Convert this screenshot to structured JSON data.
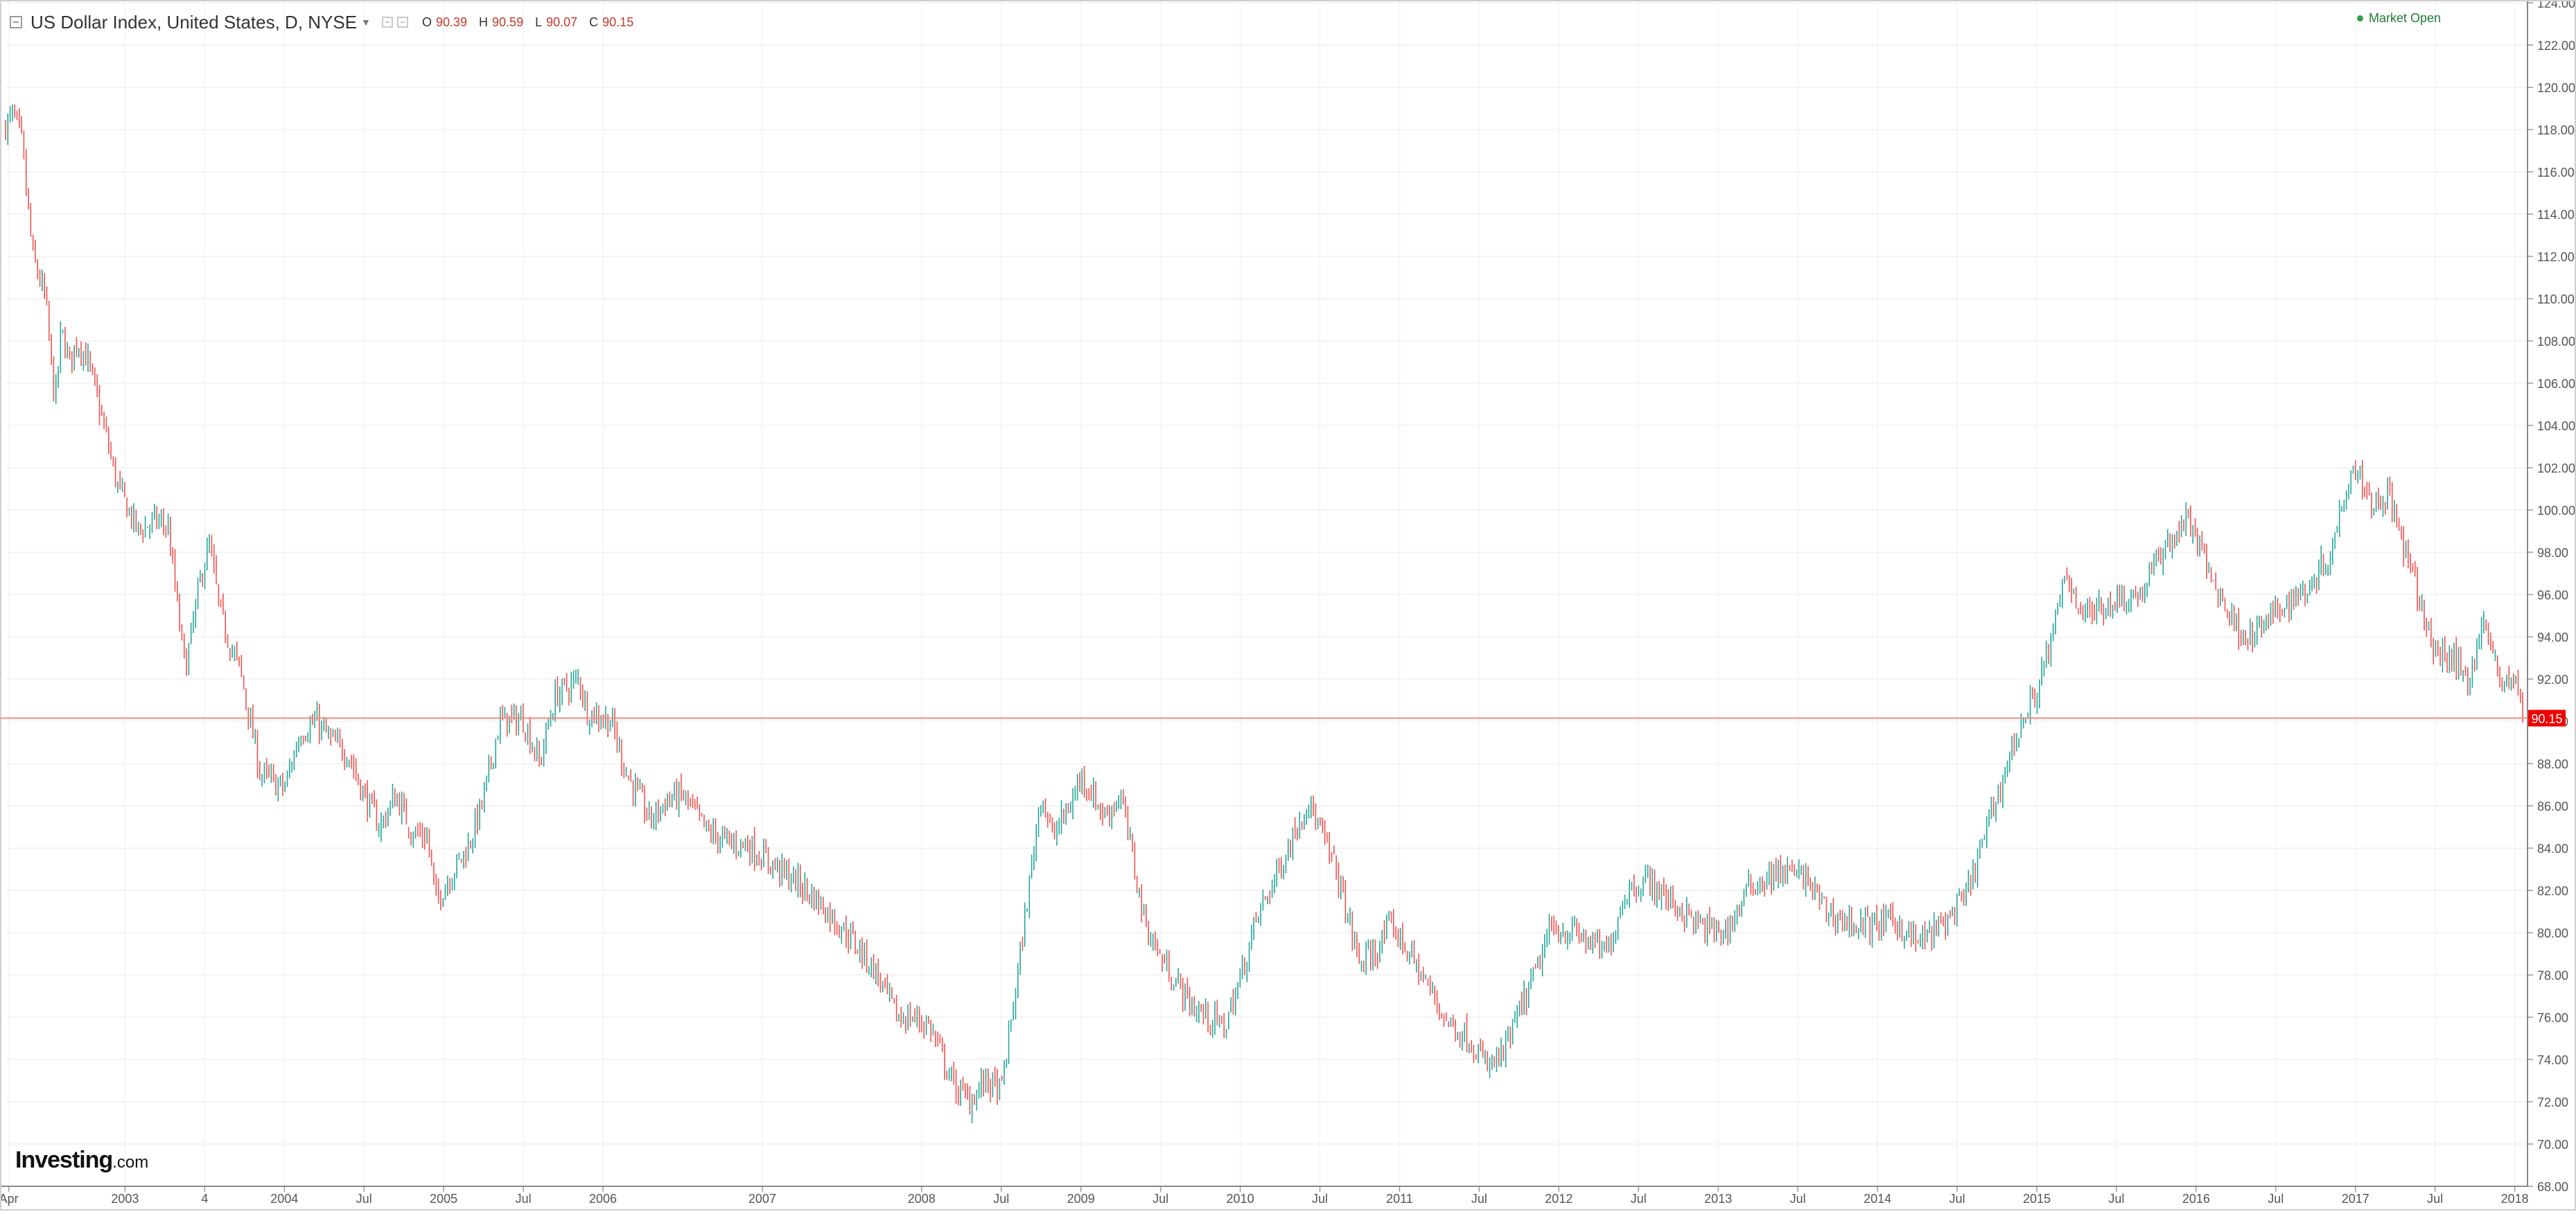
{
  "header": {
    "symbol_title": "US Dollar Index, United States, D, NYSE",
    "ohlc": {
      "open_label": "O",
      "open": "90.39",
      "high_label": "H",
      "high": "90.59",
      "low_label": "L",
      "low": "90.07",
      "close_label": "C",
      "close": "90.15"
    },
    "status": "Market Open"
  },
  "watermark": {
    "brand": "Investing",
    "domain": ".com"
  },
  "colors": {
    "up": "#26a69a",
    "down": "#ef5350",
    "price_line": "#f28b82",
    "last_price_tag": "#f00000",
    "background": "#ffffff"
  },
  "icons": [
    "collapse-icon",
    "chevron-down-icon",
    "settings-icon",
    "close-icon",
    "status-dot-icon"
  ],
  "chart_data": {
    "type": "line",
    "style": "candlestick",
    "title": "US Dollar Index, United States, D, NYSE",
    "xlabel": "",
    "ylabel": "",
    "ylim": [
      68,
      124
    ],
    "xlim": [
      2002.25,
      2018.08
    ],
    "grid": true,
    "last_price": 90.15,
    "last_price_label": "90.15",
    "y_ticks": [
      "68.00",
      "70.00",
      "72.00",
      "74.00",
      "76.00",
      "78.00",
      "80.00",
      "82.00",
      "84.00",
      "86.00",
      "88.00",
      "90.00",
      "92.00",
      "94.00",
      "96.00",
      "98.00",
      "100.00",
      "102.00",
      "104.00",
      "106.00",
      "108.00",
      "110.00",
      "112.00",
      "114.00",
      "116.00",
      "118.00",
      "120.00",
      "122.00",
      "124.00"
    ],
    "x_ticks": [
      {
        "label": "Apr",
        "t": 2002.27
      },
      {
        "label": "2003",
        "t": 2003.0
      },
      {
        "label": "4",
        "t": 2003.5
      },
      {
        "label": "2004",
        "t": 2004.0
      },
      {
        "label": "Jul",
        "t": 2004.5
      },
      {
        "label": "2005",
        "t": 2005.0
      },
      {
        "label": "Jul",
        "t": 2005.5
      },
      {
        "label": "2006",
        "t": 2006.0
      },
      {
        "label": "2007",
        "t": 2007.0
      },
      {
        "label": "2008",
        "t": 2008.0
      },
      {
        "label": "Jul",
        "t": 2008.5
      },
      {
        "label": "2009",
        "t": 2009.0
      },
      {
        "label": "Jul",
        "t": 2009.5
      },
      {
        "label": "2010",
        "t": 2010.0
      },
      {
        "label": "Jul",
        "t": 2010.5
      },
      {
        "label": "2011",
        "t": 2011.0
      },
      {
        "label": "Jul",
        "t": 2011.5
      },
      {
        "label": "2012",
        "t": 2012.0
      },
      {
        "label": "Jul",
        "t": 2012.5
      },
      {
        "label": "2013",
        "t": 2013.0
      },
      {
        "label": "Jul",
        "t": 2013.5
      },
      {
        "label": "2014",
        "t": 2014.0
      },
      {
        "label": "Jul",
        "t": 2014.5
      },
      {
        "label": "2015",
        "t": 2015.0
      },
      {
        "label": "Jul",
        "t": 2015.5
      },
      {
        "label": "2016",
        "t": 2016.0
      },
      {
        "label": "Jul",
        "t": 2016.5
      },
      {
        "label": "2017",
        "t": 2017.0
      },
      {
        "label": "Jul",
        "t": 2017.5
      },
      {
        "label": "2018",
        "t": 2018.0
      }
    ],
    "series": [
      {
        "x": [
          2002.25,
          2002.3,
          2002.35,
          2002.42,
          2002.5,
          2002.56,
          2002.6,
          2002.65,
          2002.7,
          2002.76,
          2002.85,
          2002.95,
          2003.08,
          2003.2,
          2003.27,
          2003.35,
          2003.38,
          2003.48,
          2003.53,
          2003.6,
          2003.68,
          2003.72,
          2003.85,
          2004.0,
          2004.1,
          2004.2,
          2004.3,
          2004.4,
          2004.5,
          2004.6,
          2004.7,
          2004.8,
          2004.9,
          2004.95,
          2005.05,
          2005.15,
          2005.25,
          2005.35,
          2005.5,
          2005.6,
          2005.7,
          2005.85,
          2005.9,
          2006.05,
          2006.15,
          2006.3,
          2006.4,
          2006.5,
          2006.65,
          2006.8,
          2006.9,
          2007.05,
          2007.2,
          2007.35,
          2007.55,
          2007.7,
          2007.85,
          2007.95,
          2008.05,
          2008.2,
          2008.3,
          2008.4,
          2008.5,
          2008.62,
          2008.75,
          2008.82,
          2008.95,
          2009.0,
          2009.15,
          2009.25,
          2009.4,
          2009.5,
          2009.7,
          2009.9,
          2010.0,
          2010.1,
          2010.3,
          2010.42,
          2010.6,
          2010.75,
          2010.85,
          2010.95,
          2011.1,
          2011.3,
          2011.45,
          2011.55,
          2011.65,
          2011.75,
          2011.85,
          2011.95,
          2012.1,
          2012.3,
          2012.42,
          2012.55,
          2012.7,
          2012.9,
          2013.05,
          2013.2,
          2013.4,
          2013.55,
          2013.68,
          2013.8,
          2013.95,
          2014.1,
          2014.25,
          2014.4,
          2014.55,
          2014.7,
          2014.85,
          2015.0,
          2015.1,
          2015.18,
          2015.3,
          2015.5,
          2015.65,
          2015.8,
          2015.95,
          2016.1,
          2016.25,
          2016.35,
          2016.55,
          2016.7,
          2016.85,
          2016.95,
          2017.0,
          2017.12,
          2017.2,
          2017.35,
          2017.5,
          2017.62,
          2017.7,
          2017.8,
          2017.9,
          2018.0,
          2018.05
        ],
        "y": [
          118.2,
          118.7,
          117.5,
          112.0,
          110.0,
          105.0,
          108.5,
          107.0,
          108.0,
          107.2,
          104.5,
          101.2,
          99.0,
          99.5,
          99.2,
          94.0,
          92.5,
          97.0,
          98.3,
          95.0,
          93.2,
          92.5,
          87.5,
          86.8,
          89.5,
          90.0,
          89.0,
          88.5,
          86.5,
          85.0,
          86.5,
          84.8,
          84.5,
          81.5,
          82.8,
          84.0,
          86.3,
          90.0,
          90.1,
          88.0,
          91.2,
          92.0,
          90.5,
          90.0,
          87.5,
          85.3,
          86.3,
          86.5,
          84.8,
          84.2,
          84.2,
          83.3,
          82.5,
          81.5,
          79.8,
          78.3,
          76.0,
          76.0,
          75.6,
          72.8,
          72.0,
          73.0,
          72.5,
          79.0,
          86.7,
          84.5,
          86.3,
          87.5,
          85.5,
          86.5,
          80.5,
          78.8,
          76.5,
          75.5,
          77.8,
          80.6,
          84.0,
          86.3,
          83.0,
          78.5,
          79.1,
          80.4,
          78.5,
          75.8,
          74.9,
          73.6,
          74.2,
          76.2,
          78.0,
          80.2,
          80.0,
          79.0,
          82.0,
          82.5,
          81.5,
          80.2,
          80.0,
          82.2,
          82.9,
          82.6,
          81.0,
          80.5,
          80.3,
          80.6,
          79.5,
          80.3,
          81.6,
          85.2,
          88.9,
          91.5,
          94.0,
          97.0,
          95.0,
          95.8,
          96.0,
          98.2,
          99.6,
          96.7,
          94.5,
          94.0,
          95.5,
          96.3,
          98.1,
          101.5,
          102.1,
          100.2,
          100.9,
          97.0,
          93.2,
          93.0,
          91.8,
          94.7,
          92.1,
          92.0,
          90.15
        ]
      }
    ]
  }
}
